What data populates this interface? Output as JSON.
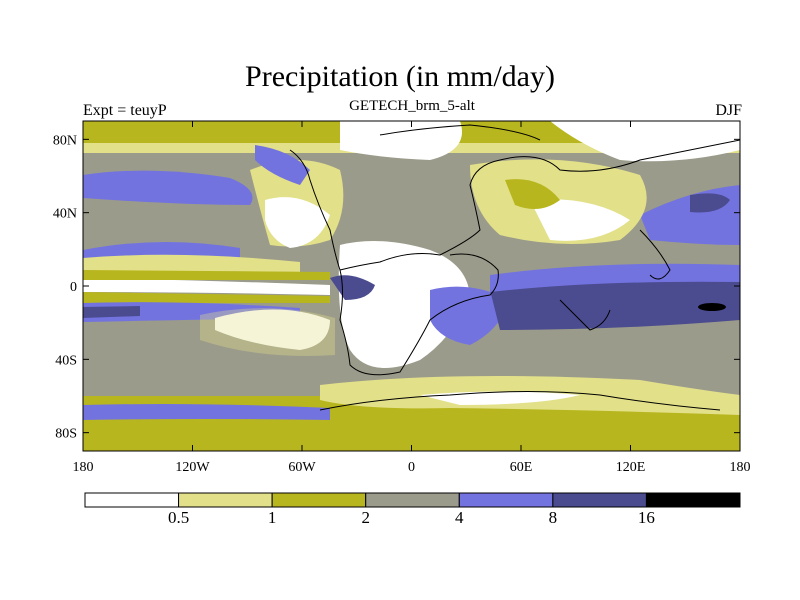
{
  "title": "Precipitation (in mm/day)",
  "subtitle": "GETECH_brm_5-alt",
  "left_string": "Expt = teuyP",
  "right_string": "DJF",
  "map": {
    "projection": "cylindrical-equidistant",
    "lon_range": [
      -180,
      180
    ],
    "lat_range": [
      -90,
      90
    ],
    "lon_ticks": [
      "180",
      "120W",
      "60W",
      "0",
      "60E",
      "120E",
      "180"
    ],
    "lat_ticks": [
      "80N",
      "40N",
      "0",
      "40S",
      "80S"
    ],
    "lat_tick_values": [
      80,
      40,
      0,
      -40,
      -80
    ],
    "lon_tick_values": [
      -180,
      -120,
      -60,
      0,
      60,
      120,
      180
    ]
  },
  "colorbar": {
    "levels": [
      "0.5",
      "1",
      "2",
      "4",
      "8",
      "16"
    ],
    "colors": [
      "#ffffff",
      "#e2e089",
      "#b8b61e",
      "#9b9b8b",
      "#7373e0",
      "#4b4b8f",
      "#000000"
    ]
  }
}
